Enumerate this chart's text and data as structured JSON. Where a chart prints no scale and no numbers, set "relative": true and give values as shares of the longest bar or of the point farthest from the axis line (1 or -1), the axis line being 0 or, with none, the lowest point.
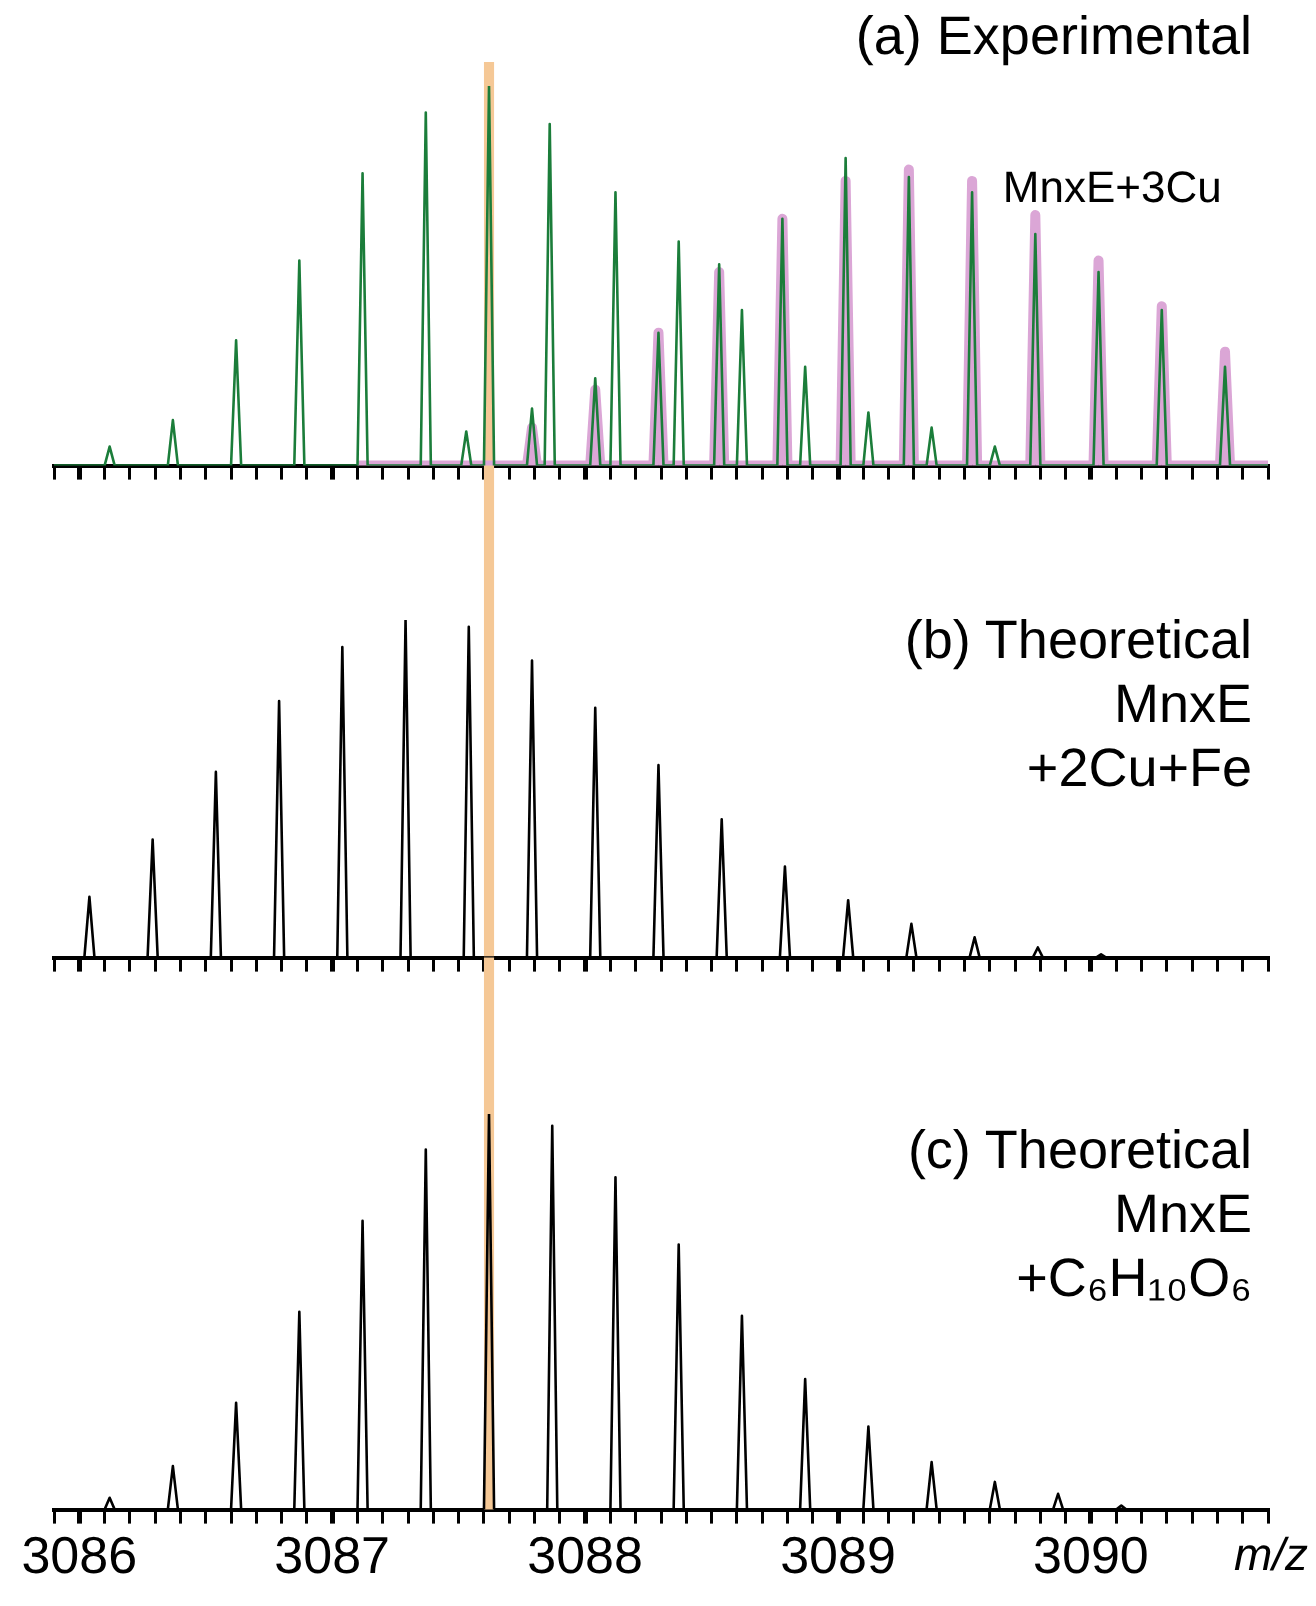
{
  "chart_data": [
    {
      "type": "line",
      "relative": true,
      "title": "(a) Experimental",
      "xlim": [
        3085.9,
        3090.7
      ],
      "tick_labels": false,
      "xticks": [
        {
          "value": 3085.9,
          "label": null
        },
        3086,
        {
          "value": 3086.1,
          "label": null
        },
        {
          "value": 3086.2,
          "label": null
        },
        {
          "value": 3086.3,
          "label": null
        },
        {
          "value": 3086.4,
          "label": null
        },
        {
          "value": 3086.5,
          "label": null
        },
        {
          "value": 3086.6,
          "label": null
        },
        {
          "value": 3086.7,
          "label": null
        },
        {
          "value": 3086.8,
          "label": null
        },
        {
          "value": 3086.9,
          "label": null
        },
        3087,
        {
          "value": 3087.1,
          "label": null
        },
        {
          "value": 3087.2,
          "label": null
        },
        {
          "value": 3087.3,
          "label": null
        },
        {
          "value": 3087.4,
          "label": null
        },
        {
          "value": 3087.5,
          "label": null
        },
        {
          "value": 3087.6,
          "label": null
        },
        {
          "value": 3087.7,
          "label": null
        },
        {
          "value": 3087.8,
          "label": null
        },
        {
          "value": 3087.9,
          "label": null
        },
        3088,
        {
          "value": 3088.1,
          "label": null
        },
        {
          "value": 3088.2,
          "label": null
        },
        {
          "value": 3088.3,
          "label": null
        },
        {
          "value": 3088.4,
          "label": null
        },
        {
          "value": 3088.5,
          "label": null
        },
        {
          "value": 3088.6,
          "label": null
        },
        {
          "value": 3088.7,
          "label": null
        },
        {
          "value": 3088.8,
          "label": null
        },
        {
          "value": 3088.9,
          "label": null
        },
        3089,
        {
          "value": 3089.1,
          "label": null
        },
        {
          "value": 3089.2,
          "label": null
        },
        {
          "value": 3089.3,
          "label": null
        },
        {
          "value": 3089.4,
          "label": null
        },
        {
          "value": 3089.5,
          "label": null
        },
        {
          "value": 3089.6,
          "label": null
        },
        {
          "value": 3089.7,
          "label": null
        },
        {
          "value": 3089.8,
          "label": null
        },
        {
          "value": 3089.9,
          "label": null
        },
        3090,
        {
          "value": 3090.1,
          "label": null
        },
        {
          "value": 3090.2,
          "label": null
        },
        {
          "value": 3090.3,
          "label": null
        },
        {
          "value": 3090.4,
          "label": null
        },
        {
          "value": 3090.5,
          "label": null
        },
        {
          "value": 3090.6,
          "label": null
        },
        {
          "value": 3090.7,
          "label": null
        }
      ],
      "bands": [
        {
          "axis": "x",
          "from": 3087.6,
          "to": 3087.64,
          "color": "#f5c896"
        }
      ],
      "series": [
        {
          "name": "MnxE+3Cu",
          "color": "#dba6d6",
          "x": [
            3087.1,
            3087.77,
            3087.79,
            3087.81,
            3088.02,
            3088.04,
            3088.06,
            3088.27,
            3088.29,
            3088.31,
            3088.51,
            3088.53,
            3088.55,
            3088.76,
            3088.78,
            3088.8,
            3089.01,
            3089.03,
            3089.05,
            3089.26,
            3089.28,
            3089.3,
            3089.51,
            3089.53,
            3089.55,
            3089.76,
            3089.78,
            3089.8,
            3090.01,
            3090.03,
            3090.05,
            3090.26,
            3090.28,
            3090.3,
            3090.51,
            3090.53,
            3090.55,
            3090.7
          ],
          "values": [
            0,
            0,
            0.1,
            0,
            0,
            0.2,
            0,
            0,
            0.35,
            0,
            0,
            0.51,
            0,
            0,
            0.65,
            0,
            0,
            0.75,
            0,
            0,
            0.78,
            0,
            0,
            0.75,
            0,
            0,
            0.66,
            0,
            0,
            0.54,
            0,
            0,
            0.42,
            0,
            0,
            0.3,
            0,
            0
          ]
        },
        {
          "color": "#1b7d3a",
          "x": [
            3085.9,
            3086.1,
            3086.12,
            3086.14,
            3086.35,
            3086.37,
            3086.39,
            3086.6,
            3086.62,
            3086.64,
            3086.85,
            3086.87,
            3086.89,
            3087.1,
            3087.12,
            3087.14,
            3087.35,
            3087.37,
            3087.39,
            3087.51,
            3087.53,
            3087.55,
            3087.6,
            3087.62,
            3087.64,
            3087.77,
            3087.79,
            3087.81,
            3087.84,
            3087.86,
            3087.88,
            3088.02,
            3088.04,
            3088.06,
            3088.1,
            3088.12,
            3088.14,
            3088.27,
            3088.29,
            3088.31,
            3088.35,
            3088.37,
            3088.39,
            3088.51,
            3088.53,
            3088.55,
            3088.6,
            3088.62,
            3088.64,
            3088.76,
            3088.78,
            3088.8,
            3088.85,
            3088.87,
            3088.89,
            3089.01,
            3089.03,
            3089.05,
            3089.1,
            3089.12,
            3089.14,
            3089.26,
            3089.28,
            3089.3,
            3089.35,
            3089.37,
            3089.39,
            3089.51,
            3089.53,
            3089.55,
            3089.6,
            3089.62,
            3089.64,
            3089.76,
            3089.78,
            3089.8,
            3090.01,
            3090.03,
            3090.05,
            3090.26,
            3090.28,
            3090.3,
            3090.51,
            3090.53,
            3090.55,
            3090.7
          ],
          "values": [
            0,
            0,
            0.05,
            0,
            0,
            0.12,
            0,
            0,
            0.33,
            0,
            0,
            0.54,
            0,
            0,
            0.77,
            0,
            0,
            0.93,
            0,
            0,
            0.09,
            0,
            0,
            1,
            0,
            0,
            0.15,
            0,
            0,
            0.9,
            0,
            0,
            0.23,
            0,
            0,
            0.72,
            0,
            0,
            0.35,
            0,
            0,
            0.59,
            0,
            0,
            0.53,
            0,
            0,
            0.41,
            0,
            0,
            0.65,
            0,
            0,
            0.26,
            0,
            0,
            0.81,
            0,
            0,
            0.14,
            0,
            0,
            0.76,
            0,
            0,
            0.1,
            0,
            0,
            0.72,
            0,
            0,
            0.05,
            0,
            0,
            0.61,
            0,
            0,
            0.51,
            0,
            0,
            0.41,
            0,
            0,
            0.26,
            0,
            0
          ]
        }
      ]
    },
    {
      "type": "line",
      "relative": true,
      "title": "(b) Theoretical\nMnxE\n+2Cu+Fe",
      "xlim": [
        3085.9,
        3090.7
      ],
      "tick_labels": false,
      "xticks": [
        {
          "value": 3085.9,
          "label": null
        },
        3086,
        {
          "value": 3086.1,
          "label": null
        },
        {
          "value": 3086.2,
          "label": null
        },
        {
          "value": 3086.3,
          "label": null
        },
        {
          "value": 3086.4,
          "label": null
        },
        {
          "value": 3086.5,
          "label": null
        },
        {
          "value": 3086.6,
          "label": null
        },
        {
          "value": 3086.7,
          "label": null
        },
        {
          "value": 3086.8,
          "label": null
        },
        {
          "value": 3086.9,
          "label": null
        },
        3087,
        {
          "value": 3087.1,
          "label": null
        },
        {
          "value": 3087.2,
          "label": null
        },
        {
          "value": 3087.3,
          "label": null
        },
        {
          "value": 3087.4,
          "label": null
        },
        {
          "value": 3087.5,
          "label": null
        },
        {
          "value": 3087.6,
          "label": null
        },
        {
          "value": 3087.7,
          "label": null
        },
        {
          "value": 3087.8,
          "label": null
        },
        {
          "value": 3087.9,
          "label": null
        },
        3088,
        {
          "value": 3088.1,
          "label": null
        },
        {
          "value": 3088.2,
          "label": null
        },
        {
          "value": 3088.3,
          "label": null
        },
        {
          "value": 3088.4,
          "label": null
        },
        {
          "value": 3088.5,
          "label": null
        },
        {
          "value": 3088.6,
          "label": null
        },
        {
          "value": 3088.7,
          "label": null
        },
        {
          "value": 3088.8,
          "label": null
        },
        {
          "value": 3088.9,
          "label": null
        },
        3089,
        {
          "value": 3089.1,
          "label": null
        },
        {
          "value": 3089.2,
          "label": null
        },
        {
          "value": 3089.3,
          "label": null
        },
        {
          "value": 3089.4,
          "label": null
        },
        {
          "value": 3089.5,
          "label": null
        },
        {
          "value": 3089.6,
          "label": null
        },
        {
          "value": 3089.7,
          "label": null
        },
        {
          "value": 3089.8,
          "label": null
        },
        {
          "value": 3089.9,
          "label": null
        },
        3090,
        {
          "value": 3090.1,
          "label": null
        },
        {
          "value": 3090.2,
          "label": null
        },
        {
          "value": 3090.3,
          "label": null
        },
        {
          "value": 3090.4,
          "label": null
        },
        {
          "value": 3090.5,
          "label": null
        },
        {
          "value": 3090.6,
          "label": null
        },
        {
          "value": 3090.7,
          "label": null
        }
      ],
      "bands": [
        {
          "axis": "x",
          "from": 3087.6,
          "to": 3087.64,
          "color": "#f5c896"
        }
      ],
      "series": [
        {
          "color": "#000000",
          "x": [
            3085.9,
            3086.02,
            3086.04,
            3086.06,
            3086.27,
            3086.29,
            3086.31,
            3086.52,
            3086.54,
            3086.56,
            3086.77,
            3086.79,
            3086.81,
            3087.02,
            3087.04,
            3087.06,
            3087.27,
            3087.29,
            3087.31,
            3087.52,
            3087.54,
            3087.56,
            3087.77,
            3087.79,
            3087.81,
            3088.02,
            3088.04,
            3088.06,
            3088.27,
            3088.29,
            3088.31,
            3088.52,
            3088.54,
            3088.56,
            3088.77,
            3088.79,
            3088.81,
            3089.02,
            3089.04,
            3089.06,
            3089.27,
            3089.29,
            3089.31,
            3089.52,
            3089.54,
            3089.56,
            3089.77,
            3089.79,
            3089.81,
            3090.02,
            3090.04,
            3090.06,
            3090.7
          ],
          "values": [
            0,
            0,
            0.18,
            0,
            0,
            0.35,
            0,
            0,
            0.55,
            0,
            0,
            0.76,
            0,
            0,
            0.92,
            0,
            0,
            1,
            0,
            0,
            0.98,
            0,
            0,
            0.88,
            0,
            0,
            0.74,
            0,
            0,
            0.57,
            0,
            0,
            0.41,
            0,
            0,
            0.27,
            0,
            0,
            0.17,
            0,
            0,
            0.1,
            0,
            0,
            0.06,
            0,
            0,
            0.03,
            0,
            0,
            0.01,
            0,
            0
          ]
        }
      ]
    },
    {
      "type": "line",
      "relative": true,
      "title": "(c) Theoretical\nMnxE\n+C₆H₁₀O₆",
      "xlabel": "m/z",
      "xlim": [
        3085.9,
        3090.7
      ],
      "tick_labels": "x",
      "xticks": [
        {
          "value": 3085.9,
          "label": null
        },
        3086,
        {
          "value": 3086.1,
          "label": null
        },
        {
          "value": 3086.2,
          "label": null
        },
        {
          "value": 3086.3,
          "label": null
        },
        {
          "value": 3086.4,
          "label": null
        },
        {
          "value": 3086.5,
          "label": null
        },
        {
          "value": 3086.6,
          "label": null
        },
        {
          "value": 3086.7,
          "label": null
        },
        {
          "value": 3086.8,
          "label": null
        },
        {
          "value": 3086.9,
          "label": null
        },
        3087,
        {
          "value": 3087.1,
          "label": null
        },
        {
          "value": 3087.2,
          "label": null
        },
        {
          "value": 3087.3,
          "label": null
        },
        {
          "value": 3087.4,
          "label": null
        },
        {
          "value": 3087.5,
          "label": null
        },
        {
          "value": 3087.6,
          "label": null
        },
        {
          "value": 3087.7,
          "label": null
        },
        {
          "value": 3087.8,
          "label": null
        },
        {
          "value": 3087.9,
          "label": null
        },
        3088,
        {
          "value": 3088.1,
          "label": null
        },
        {
          "value": 3088.2,
          "label": null
        },
        {
          "value": 3088.3,
          "label": null
        },
        {
          "value": 3088.4,
          "label": null
        },
        {
          "value": 3088.5,
          "label": null
        },
        {
          "value": 3088.6,
          "label": null
        },
        {
          "value": 3088.7,
          "label": null
        },
        {
          "value": 3088.8,
          "label": null
        },
        {
          "value": 3088.9,
          "label": null
        },
        3089,
        {
          "value": 3089.1,
          "label": null
        },
        {
          "value": 3089.2,
          "label": null
        },
        {
          "value": 3089.3,
          "label": null
        },
        {
          "value": 3089.4,
          "label": null
        },
        {
          "value": 3089.5,
          "label": null
        },
        {
          "value": 3089.6,
          "label": null
        },
        {
          "value": 3089.7,
          "label": null
        },
        {
          "value": 3089.8,
          "label": null
        },
        {
          "value": 3089.9,
          "label": null
        },
        3090,
        {
          "value": 3090.1,
          "label": null
        },
        {
          "value": 3090.2,
          "label": null
        },
        {
          "value": 3090.3,
          "label": null
        },
        {
          "value": 3090.4,
          "label": null
        },
        {
          "value": 3090.5,
          "label": null
        },
        {
          "value": 3090.6,
          "label": null
        },
        {
          "value": 3090.7,
          "label": null
        }
      ],
      "bands": [
        {
          "axis": "x",
          "from": 3087.6,
          "to": 3087.64,
          "color": "#f5c896"
        }
      ],
      "series": [
        {
          "color": "#000000",
          "x": [
            3085.9,
            3086.1,
            3086.12,
            3086.14,
            3086.35,
            3086.37,
            3086.39,
            3086.6,
            3086.62,
            3086.64,
            3086.85,
            3086.87,
            3086.89,
            3087.1,
            3087.12,
            3087.14,
            3087.35,
            3087.37,
            3087.39,
            3087.6,
            3087.62,
            3087.64,
            3087.85,
            3087.87,
            3087.89,
            3088.1,
            3088.12,
            3088.14,
            3088.35,
            3088.37,
            3088.39,
            3088.6,
            3088.62,
            3088.64,
            3088.85,
            3088.87,
            3088.89,
            3089.1,
            3089.12,
            3089.14,
            3089.35,
            3089.37,
            3089.39,
            3089.6,
            3089.62,
            3089.64,
            3089.85,
            3089.87,
            3089.89,
            3090.1,
            3090.12,
            3090.14,
            3090.7
          ],
          "values": [
            0,
            0,
            0.03,
            0,
            0,
            0.11,
            0,
            0,
            0.27,
            0,
            0,
            0.5,
            0,
            0,
            0.73,
            0,
            0,
            0.91,
            0,
            0,
            1,
            0,
            0,
            0.97,
            0,
            0,
            0.84,
            0,
            0,
            0.67,
            0,
            0,
            0.49,
            0,
            0,
            0.33,
            0,
            0,
            0.21,
            0,
            0,
            0.12,
            0,
            0,
            0.07,
            0,
            0,
            0.04,
            0,
            0,
            0.01,
            0,
            0
          ]
        }
      ]
    }
  ]
}
